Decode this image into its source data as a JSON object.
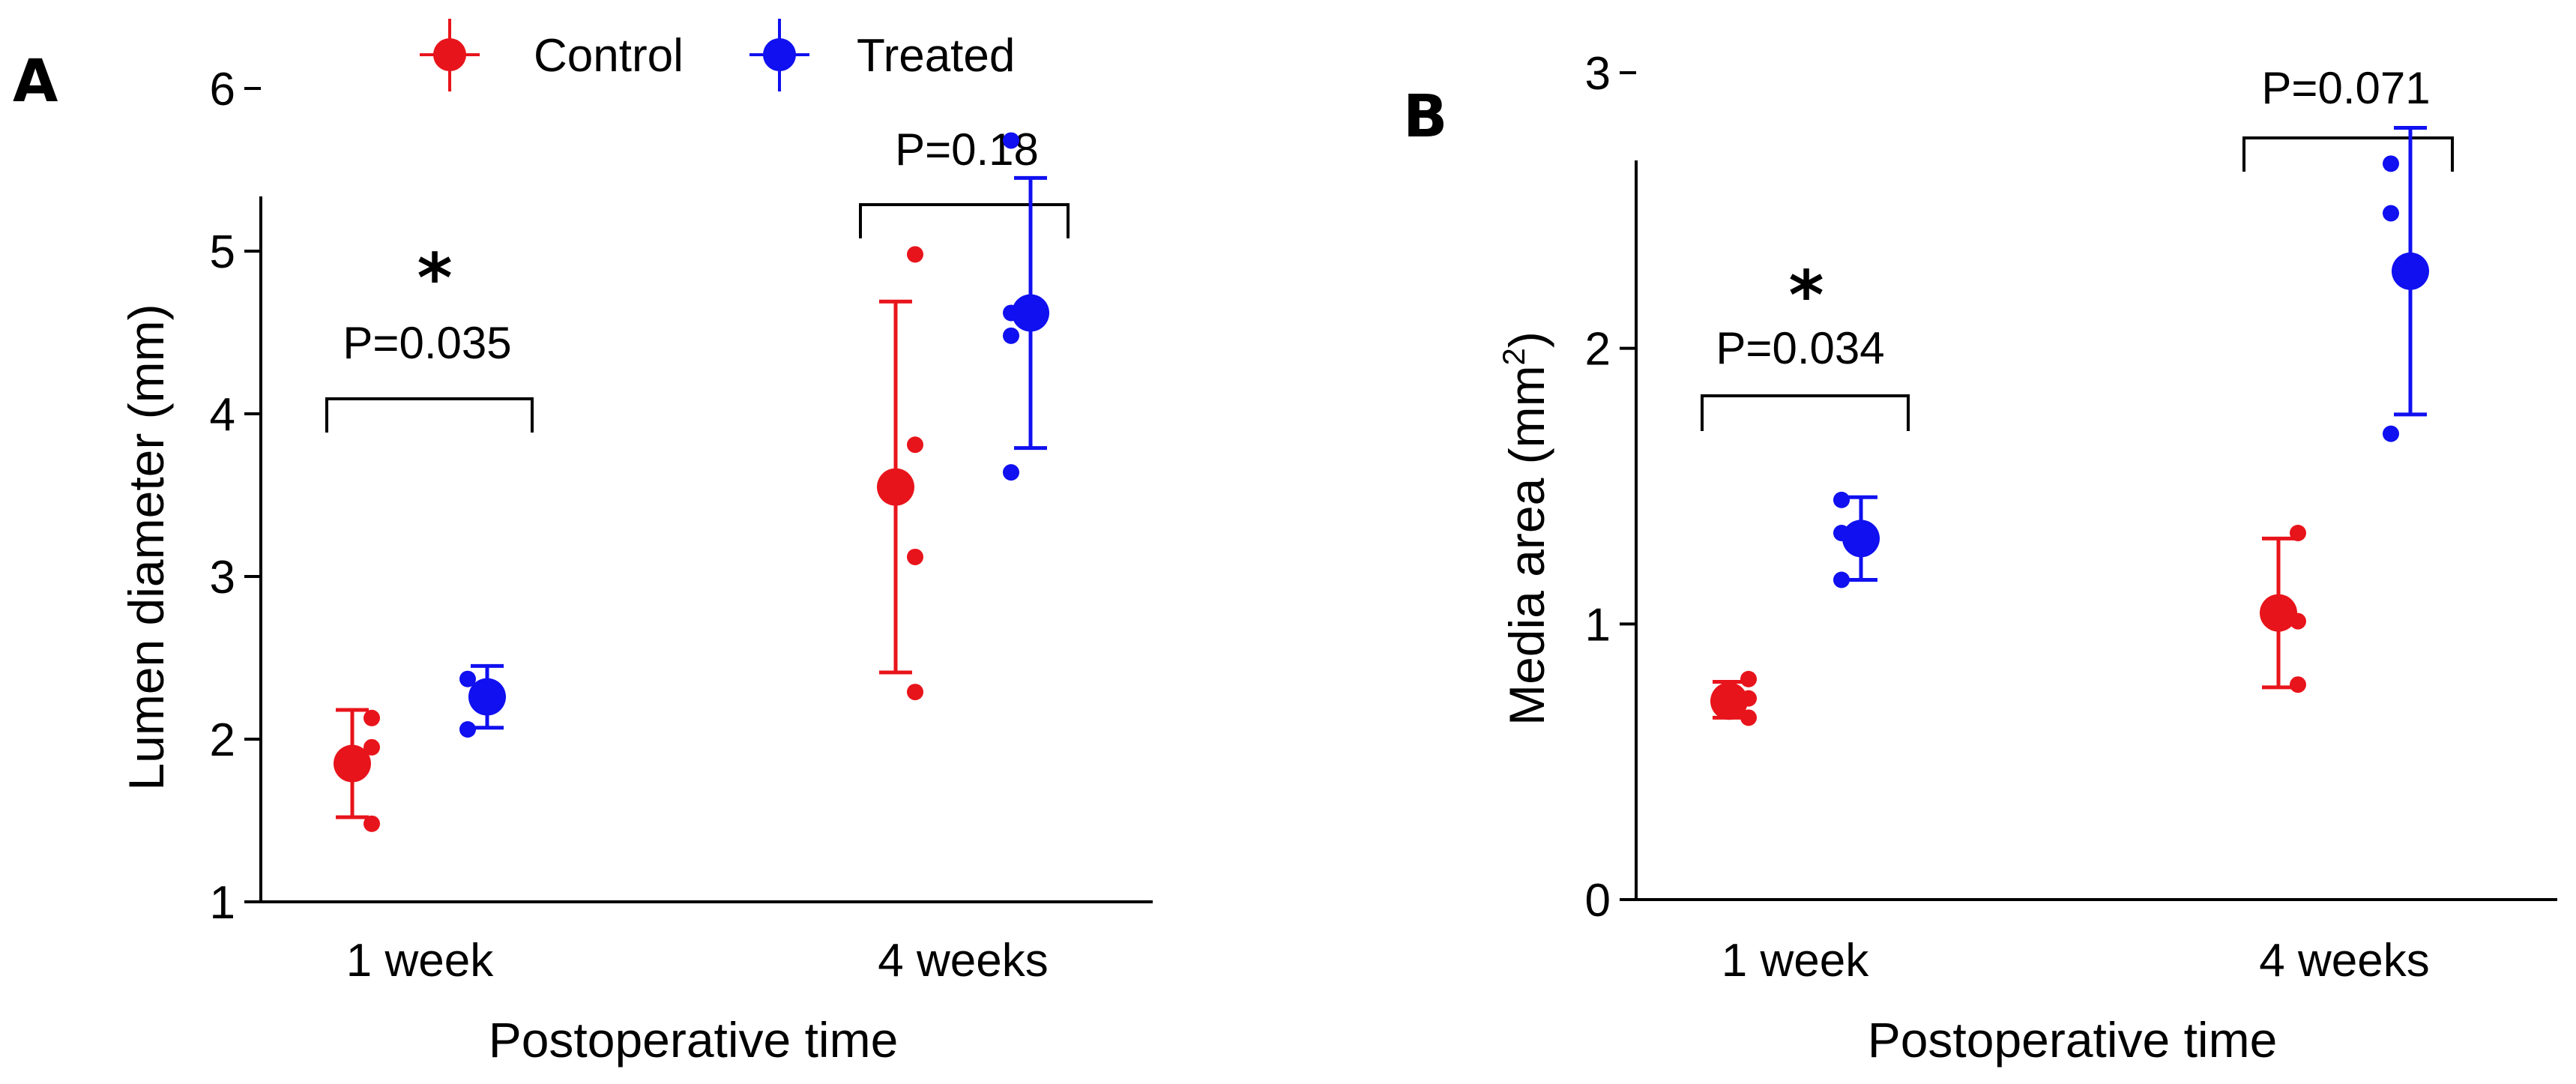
{
  "legend": {
    "items": [
      {
        "label": "Control",
        "color": "#e8141b"
      },
      {
        "label": "Treated",
        "color": "#1010f0"
      }
    ]
  },
  "chart_data": [
    {
      "type": "scatter",
      "panel": "A",
      "xlabel": "Postoperative time",
      "ylabel": "Lumen diameter (mm)",
      "categories": [
        "1 week",
        "4 weeks"
      ],
      "ylim": [
        1,
        6
      ],
      "yticks": [
        1,
        2,
        3,
        4,
        5,
        6
      ],
      "series": [
        {
          "name": "Control",
          "color": "#e8141b",
          "groups": [
            {
              "category": "1 week",
              "mean": 1.85,
              "err_low": 1.52,
              "err_high": 2.18,
              "points": [
                2.13,
                1.95,
                1.48
              ]
            },
            {
              "category": "4 weeks",
              "mean": 3.55,
              "err_low": 2.41,
              "err_high": 4.69,
              "points": [
                4.98,
                3.81,
                3.12,
                2.29
              ]
            }
          ]
        },
        {
          "name": "Treated",
          "color": "#1010f0",
          "groups": [
            {
              "category": "1 week",
              "mean": 2.26,
              "err_low": 2.07,
              "err_high": 2.45,
              "points": [
                2.37,
                2.06
              ]
            },
            {
              "category": "4 weeks",
              "mean": 4.62,
              "err_low": 3.79,
              "err_high": 5.45,
              "points": [
                5.68,
                4.62,
                4.48,
                3.64
              ]
            }
          ]
        }
      ],
      "annotations": [
        {
          "category": "1 week",
          "pvalue": "P=0.035",
          "star": "*",
          "bracket_y": 4.5
        },
        {
          "category": "4 weeks",
          "pvalue": "P=0.18",
          "star": "",
          "bracket_y": 5.95
        }
      ]
    },
    {
      "type": "scatter",
      "panel": "B",
      "xlabel": "Postoperative time",
      "ylabel": "Media area (mm",
      "ylabel_sup": "2",
      "ylabel_end": ")",
      "categories": [
        "1 week",
        "4 weeks"
      ],
      "ylim": [
        0,
        3
      ],
      "yticks": [
        0,
        1,
        2,
        3
      ],
      "series": [
        {
          "name": "Control",
          "color": "#e8141b",
          "groups": [
            {
              "category": "1 week",
              "mean": 0.72,
              "err_low": 0.66,
              "err_high": 0.79,
              "points": [
                0.8,
                0.73,
                0.66
              ]
            },
            {
              "category": "4 weeks",
              "mean": 1.04,
              "err_low": 0.77,
              "err_high": 1.31,
              "points": [
                1.33,
                1.01,
                0.78
              ]
            }
          ]
        },
        {
          "name": "Treated",
          "color": "#1010f0",
          "groups": [
            {
              "category": "1 week",
              "mean": 1.31,
              "err_low": 1.16,
              "err_high": 1.46,
              "points": [
                1.45,
                1.33,
                1.16
              ]
            },
            {
              "category": "4 weeks",
              "mean": 2.28,
              "err_low": 1.76,
              "err_high": 2.8,
              "points": [
                2.67,
                2.49,
                1.69
              ]
            }
          ]
        }
      ],
      "annotations": [
        {
          "category": "1 week",
          "pvalue": "P=0.034",
          "star": "*",
          "bracket_y": 2.03
        },
        {
          "category": "4 weeks",
          "pvalue": "P=0.071",
          "star": "",
          "bracket_y": 3.06
        }
      ]
    }
  ]
}
